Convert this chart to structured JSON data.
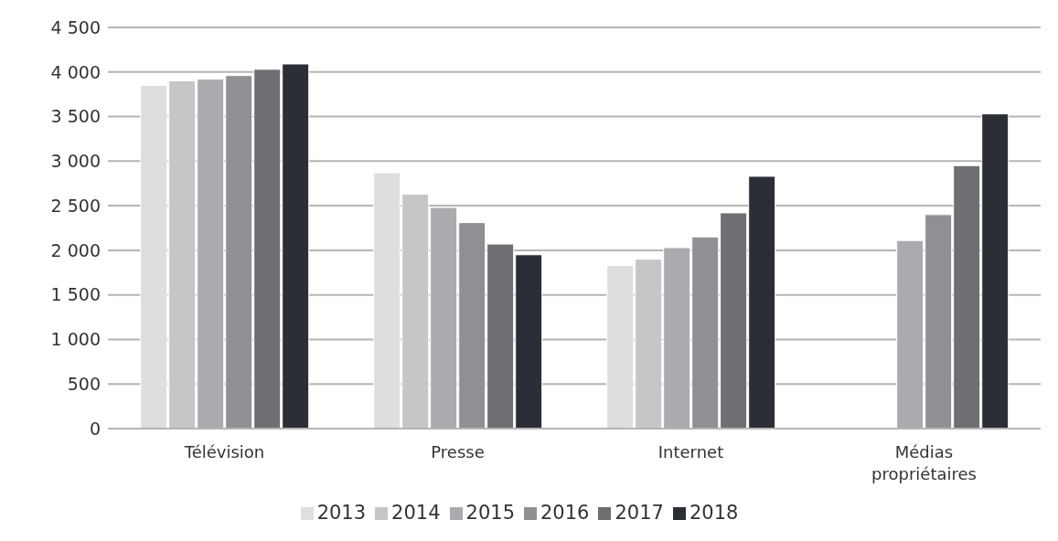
{
  "chart_data": {
    "type": "bar",
    "categories": [
      "Télévision",
      "Presse",
      "Internet",
      "Médias propriétaires"
    ],
    "series": [
      {
        "name": "2013",
        "color": "#dedede",
        "values": [
          3850,
          2870,
          1830,
          null
        ]
      },
      {
        "name": "2014",
        "color": "#c6c6c8",
        "values": [
          3900,
          2630,
          1900,
          null
        ]
      },
      {
        "name": "2015",
        "color": "#aaabae",
        "values": [
          3920,
          2480,
          2030,
          2110
        ]
      },
      {
        "name": "2016",
        "color": "#8f9093",
        "values": [
          3960,
          2310,
          2150,
          2400
        ]
      },
      {
        "name": "2017",
        "color": "#6e6f73",
        "values": [
          4030,
          2070,
          2420,
          2950
        ]
      },
      {
        "name": "2018",
        "color": "#2b2e35",
        "values": [
          4090,
          1950,
          2830,
          3530
        ]
      }
    ],
    "ylim": [
      0,
      4500
    ],
    "yticks": [
      0,
      500,
      {
        "value": 1000,
        "label": "1 000"
      },
      {
        "value": 1500,
        "label": "1 500"
      },
      {
        "value": 2000,
        "label": "2 000"
      },
      {
        "value": 2500,
        "label": "2 500"
      },
      {
        "value": 3000,
        "label": "3 000"
      },
      {
        "value": 3500,
        "label": "3 500"
      },
      {
        "value": 4000,
        "label": "4 000"
      },
      {
        "value": 4500,
        "label": "4 500"
      }
    ],
    "grid": "y",
    "legend": "bottom"
  }
}
